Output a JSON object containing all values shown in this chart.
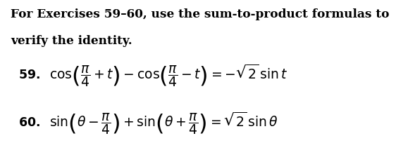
{
  "background_color": "#ffffff",
  "header_line1": "For Exercises 59–60, use the sum-to-product formulas to",
  "header_line2": "verify the identity.",
  "header_fontsize": 12.2,
  "eq_fontsize": 13.5,
  "label_fontsize": 12.5
}
